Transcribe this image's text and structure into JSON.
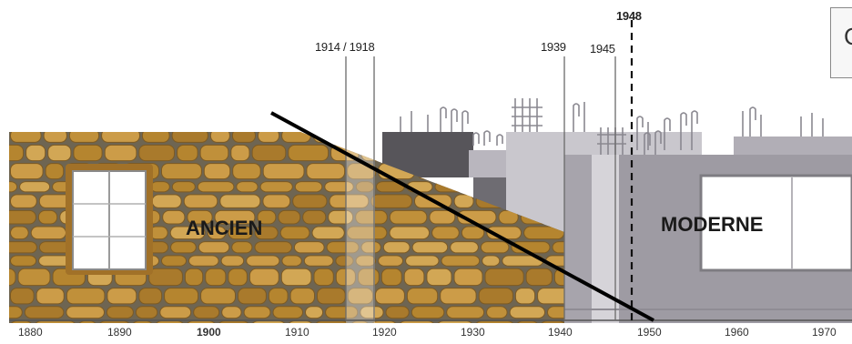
{
  "labels": {
    "ancien": "ANCIEN",
    "moderne": "MODERNE"
  },
  "events": [
    {
      "label": "1914 / 1918",
      "bold": false
    },
    {
      "label": "1939",
      "bold": false
    },
    {
      "label": "1945",
      "bold": false
    },
    {
      "label": "1948",
      "bold": true
    }
  ],
  "axis": {
    "ticks": [
      {
        "label": "1880",
        "bold": false
      },
      {
        "label": "1890",
        "bold": false
      },
      {
        "label": "1900",
        "bold": true
      },
      {
        "label": "1910",
        "bold": false
      },
      {
        "label": "1920",
        "bold": false
      },
      {
        "label": "1930",
        "bold": false
      },
      {
        "label": "1940",
        "bold": false
      },
      {
        "label": "1950",
        "bold": false
      },
      {
        "label": "1960",
        "bold": false
      },
      {
        "label": "1970",
        "bold": false
      }
    ]
  },
  "caption": {
    "text": "C"
  },
  "colors": {
    "stone": "#c0903a",
    "mortar": "#8a6a3a",
    "concrete": "#9d9aa2",
    "concrete_light": "#c8c6cc",
    "divider": "#000000"
  }
}
